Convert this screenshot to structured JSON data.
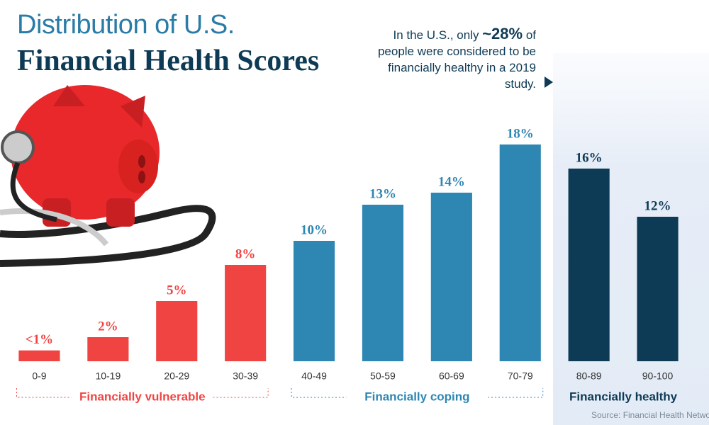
{
  "chart_data": {
    "type": "bar",
    "title": "Distribution of U.S.",
    "subtitle": "Financial Health Scores",
    "annotation": {
      "before": "In the U.S., only",
      "emphasis": "~28%",
      "after": "of people were considered to be financially healthy in a 2019 study."
    },
    "source": "Source: Financial Health Network",
    "categories": [
      "0-9",
      "10-19",
      "20-29",
      "30-39",
      "40-49",
      "50-59",
      "60-69",
      "70-79",
      "80-89",
      "90-100"
    ],
    "series": [
      {
        "name": "Financially vulnerable",
        "color": "#f04443",
        "values": [
          0.9,
          2,
          5,
          8,
          null,
          null,
          null,
          null,
          null,
          null
        ],
        "value_labels": [
          "<1%",
          "2%",
          "5%",
          "8%",
          null,
          null,
          null,
          null,
          null,
          null
        ]
      },
      {
        "name": "Financially coping",
        "color": "#2e86b3",
        "values": [
          null,
          null,
          null,
          null,
          10,
          13,
          14,
          18,
          null,
          null
        ],
        "value_labels": [
          null,
          null,
          null,
          null,
          "10%",
          "13%",
          "14%",
          "18%",
          null,
          null
        ]
      },
      {
        "name": "Financially healthy",
        "color": "#0d3a55",
        "values": [
          null,
          null,
          null,
          null,
          null,
          null,
          null,
          null,
          16,
          12
        ],
        "value_labels": [
          null,
          null,
          null,
          null,
          null,
          null,
          null,
          null,
          "16%",
          "12%"
        ]
      }
    ],
    "ylim": [
      0,
      20
    ]
  }
}
